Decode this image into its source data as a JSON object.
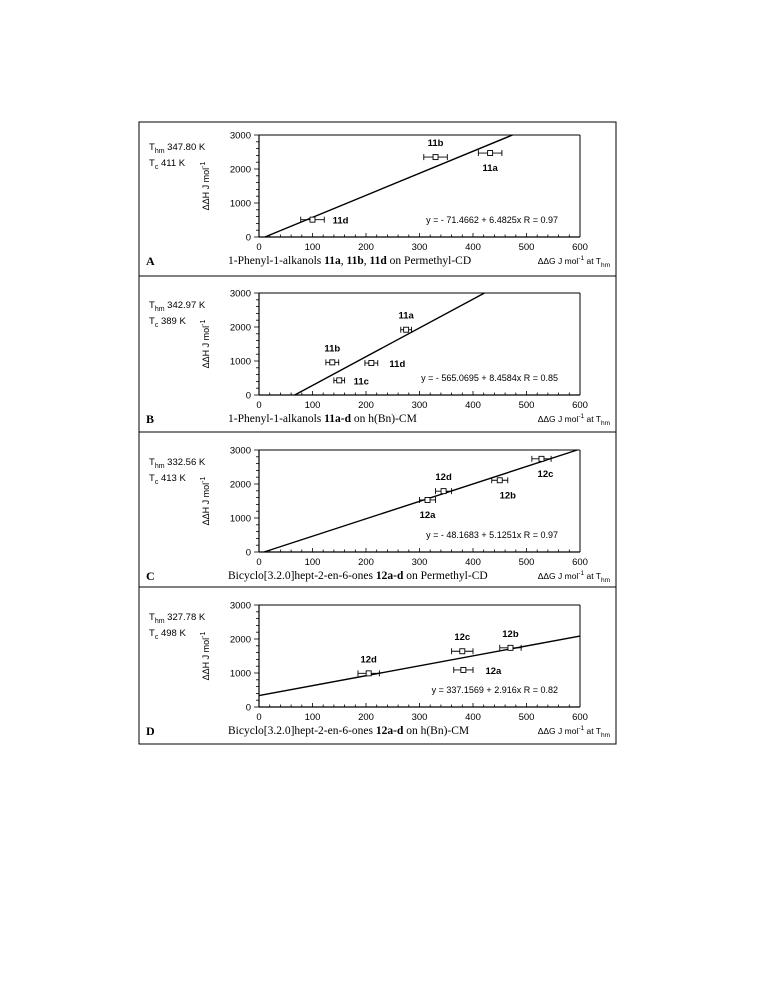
{
  "panels": [
    {
      "letter": "A",
      "thm": "347.80",
      "tc": "411",
      "unit": "K",
      "caption_parts": [
        {
          "t": "1-Phenyl-1-alkanols ",
          "b": false
        },
        {
          "t": "11a",
          "b": true
        },
        {
          "t": ", ",
          "b": false
        },
        {
          "t": "11b",
          "b": true
        },
        {
          "t": ", ",
          "b": false
        },
        {
          "t": "11d",
          "b": true
        },
        {
          "t": " on Permethyl-CD",
          "b": false
        }
      ],
      "equation": "y =  - 71.4662 + 6.4825x   R = 0.97"
    },
    {
      "letter": "B",
      "thm": "342.97",
      "tc": "389",
      "unit": "K",
      "caption_parts": [
        {
          "t": "1-Phenyl-1-alkanols ",
          "b": false
        },
        {
          "t": "11a-d",
          "b": true
        },
        {
          "t": " on h(Bn)-CM",
          "b": false
        }
      ],
      "equation": "y =  - 565.0695 + 8.4584x   R = 0.85"
    },
    {
      "letter": "C",
      "thm": "332.56",
      "tc": "413",
      "unit": "K",
      "caption_parts": [
        {
          "t": "Bicyclo[3.2.0]hept-2-en-6-ones ",
          "b": false
        },
        {
          "t": "12a-d",
          "b": true
        },
        {
          "t": " on Permethyl-CD",
          "b": false
        }
      ],
      "equation": "y =  - 48.1683 + 5.1251x   R = 0.97"
    },
    {
      "letter": "D",
      "thm": "327.78",
      "tc": "498",
      "unit": "K",
      "caption_parts": [
        {
          "t": "Bicyclo[3.2.0]hept-2-en-6-ones ",
          "b": false
        },
        {
          "t": "12a-d",
          "b": true
        },
        {
          "t": " on h(Bn)-CM",
          "b": false
        }
      ],
      "equation": "y = 337.1569 + 2.916x   R = 0.82"
    }
  ],
  "chart_data": [
    {
      "type": "scatter",
      "xlabel": "ΔΔG J mol-1 at Thm",
      "ylabel": "ΔΔH J mol-1",
      "xlim": [
        0,
        600
      ],
      "ylim": [
        0,
        3000
      ],
      "xticks": [
        0,
        100,
        200,
        300,
        400,
        500,
        600
      ],
      "yticks": [
        0,
        1000,
        2000,
        3000
      ],
      "points": [
        {
          "label": "11a",
          "x": 432,
          "y": 2470,
          "xerr": 22
        },
        {
          "label": "11b",
          "x": 330,
          "y": 2350,
          "xerr": 22
        },
        {
          "label": "11d",
          "x": 100,
          "y": 510,
          "xerr": 22
        }
      ],
      "fit": {
        "intercept": -71.4662,
        "slope": 6.4825
      }
    },
    {
      "type": "scatter",
      "xlabel": "ΔΔG J mol-1 at Thm",
      "ylabel": "ΔΔH J mol-1",
      "xlim": [
        0,
        600
      ],
      "ylim": [
        0,
        3000
      ],
      "xticks": [
        0,
        100,
        200,
        300,
        400,
        500,
        600
      ],
      "yticks": [
        0,
        1000,
        2000,
        3000
      ],
      "points": [
        {
          "label": "11a",
          "x": 275,
          "y": 1920,
          "xerr": 10
        },
        {
          "label": "11b",
          "x": 137,
          "y": 960,
          "xerr": 12
        },
        {
          "label": "11c",
          "x": 150,
          "y": 430,
          "xerr": 10
        },
        {
          "label": "11d",
          "x": 210,
          "y": 940,
          "xerr": 12
        }
      ],
      "fit": {
        "intercept": -565.0695,
        "slope": 8.4584
      }
    },
    {
      "type": "scatter",
      "xlabel": "ΔΔG J mol-1 at Thm",
      "ylabel": "ΔΔH J mol-1",
      "xlim": [
        0,
        600
      ],
      "ylim": [
        0,
        3000
      ],
      "xticks": [
        0,
        100,
        200,
        300,
        400,
        500,
        600
      ],
      "yticks": [
        0,
        1000,
        2000,
        3000
      ],
      "points": [
        {
          "label": "12a",
          "x": 315,
          "y": 1530,
          "xerr": 15
        },
        {
          "label": "12b",
          "x": 450,
          "y": 2110,
          "xerr": 15
        },
        {
          "label": "12c",
          "x": 528,
          "y": 2740,
          "xerr": 18
        },
        {
          "label": "12d",
          "x": 345,
          "y": 1790,
          "xerr": 15
        }
      ],
      "fit": {
        "intercept": -48.1683,
        "slope": 5.1251
      }
    },
    {
      "type": "scatter",
      "xlabel": "ΔΔG J mol-1 at Thm",
      "ylabel": "ΔΔH J mol-1",
      "xlim": [
        0,
        600
      ],
      "ylim": [
        0,
        3000
      ],
      "xticks": [
        0,
        100,
        200,
        300,
        400,
        500,
        600
      ],
      "yticks": [
        0,
        1000,
        2000,
        3000
      ],
      "points": [
        {
          "label": "12a",
          "x": 382,
          "y": 1090,
          "xerr": 18
        },
        {
          "label": "12b",
          "x": 470,
          "y": 1740,
          "xerr": 20
        },
        {
          "label": "12c",
          "x": 380,
          "y": 1640,
          "xerr": 20
        },
        {
          "label": "12d",
          "x": 205,
          "y": 990,
          "xerr": 20
        }
      ],
      "fit": {
        "intercept": 337.1569,
        "slope": 2.916
      }
    }
  ]
}
